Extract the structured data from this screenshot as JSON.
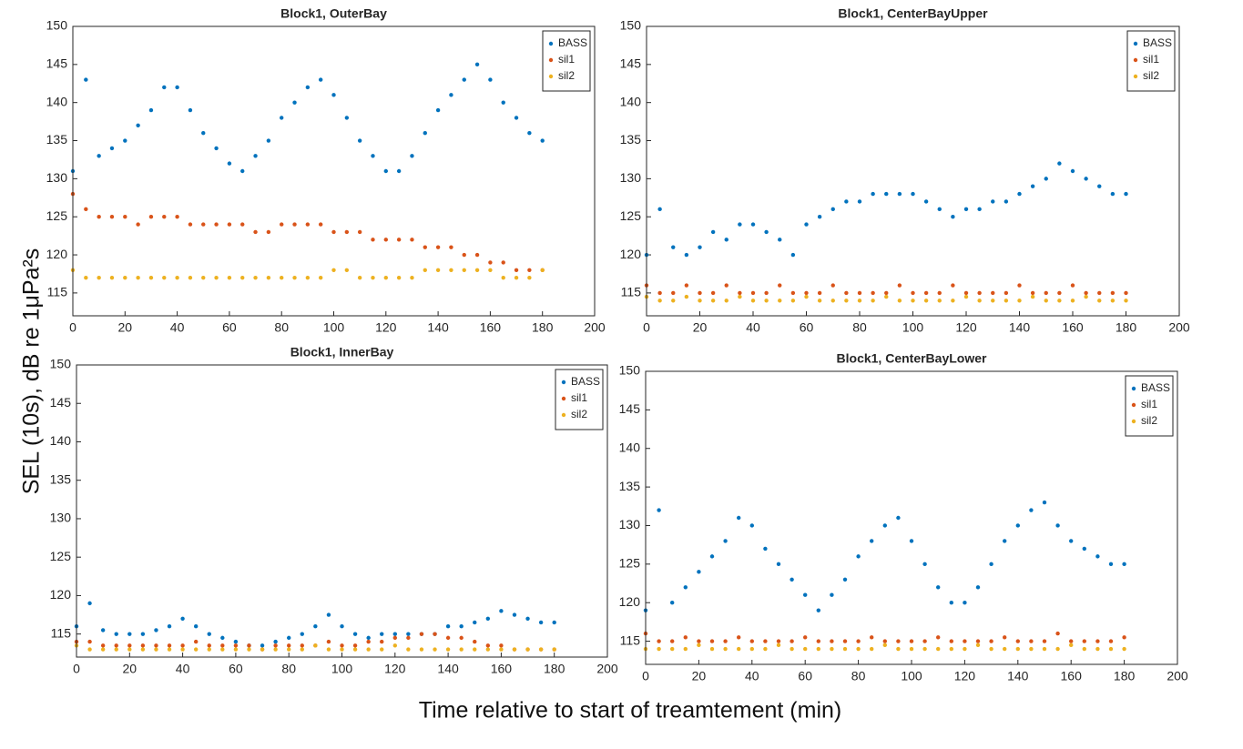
{
  "xlabel": "Time relative to start of treamtement (min)",
  "ylabel": "SEL (10s), dB re 1μPa²s",
  "chart_data": [
    {
      "type": "scatter",
      "title": "Block1, OuterBay",
      "legend": "northeast",
      "grid": false,
      "xlim": [
        0,
        200
      ],
      "xticks": [
        0,
        20,
        40,
        60,
        80,
        100,
        120,
        140,
        160,
        180,
        200
      ],
      "ylim": [
        112,
        150
      ],
      "yticks": [
        115,
        120,
        125,
        130,
        135,
        140,
        145,
        150
      ],
      "x": [
        0,
        5,
        10,
        15,
        20,
        25,
        30,
        35,
        40,
        45,
        50,
        55,
        60,
        65,
        70,
        75,
        80,
        85,
        90,
        95,
        100,
        105,
        110,
        115,
        120,
        125,
        130,
        135,
        140,
        145,
        150,
        155,
        160,
        165,
        170,
        175,
        180
      ],
      "series": [
        {
          "name": "BASS",
          "color": "#0072bd",
          "values": [
            131,
            143,
            133,
            134,
            135,
            137,
            139,
            142,
            142,
            139,
            136,
            134,
            132,
            131,
            133,
            135,
            138,
            140,
            142,
            143,
            141,
            138,
            135,
            133,
            131,
            131,
            133,
            136,
            139,
            141,
            143,
            145,
            143,
            140,
            138,
            136,
            135
          ]
        },
        {
          "name": "sil1",
          "color": "#d95319",
          "values": [
            128,
            126,
            125,
            125,
            125,
            124,
            125,
            125,
            125,
            124,
            124,
            124,
            124,
            124,
            123,
            123,
            124,
            124,
            124,
            124,
            123,
            123,
            123,
            122,
            122,
            122,
            122,
            121,
            121,
            121,
            120,
            120,
            119,
            119,
            118,
            118,
            118
          ]
        },
        {
          "name": "sil2",
          "color": "#edb120",
          "values": [
            118,
            117,
            117,
            117,
            117,
            117,
            117,
            117,
            117,
            117,
            117,
            117,
            117,
            117,
            117,
            117,
            117,
            117,
            117,
            117,
            118,
            118,
            117,
            117,
            117,
            117,
            117,
            118,
            118,
            118,
            118,
            118,
            118,
            117,
            117,
            117,
            118
          ]
        }
      ]
    },
    {
      "type": "scatter",
      "title": "Block1, CenterBayUpper",
      "legend": "northeast",
      "grid": false,
      "xlim": [
        0,
        200
      ],
      "xticks": [
        0,
        20,
        40,
        60,
        80,
        100,
        120,
        140,
        160,
        180,
        200
      ],
      "ylim": [
        112,
        150
      ],
      "yticks": [
        115,
        120,
        125,
        130,
        135,
        140,
        145,
        150
      ],
      "x": [
        0,
        5,
        10,
        15,
        20,
        25,
        30,
        35,
        40,
        45,
        50,
        55,
        60,
        65,
        70,
        75,
        80,
        85,
        90,
        95,
        100,
        105,
        110,
        115,
        120,
        125,
        130,
        135,
        140,
        145,
        150,
        155,
        160,
        165,
        170,
        175,
        180
      ],
      "series": [
        {
          "name": "BASS",
          "color": "#0072bd",
          "values": [
            120,
            126,
            121,
            120,
            121,
            123,
            122,
            124,
            124,
            123,
            122,
            120,
            124,
            125,
            126,
            127,
            127,
            128,
            128,
            128,
            128,
            127,
            126,
            125,
            126,
            126,
            127,
            127,
            128,
            129,
            130,
            132,
            131,
            130,
            129,
            128,
            128
          ]
        },
        {
          "name": "sil1",
          "color": "#d95319",
          "values": [
            116,
            115,
            115,
            116,
            115,
            115,
            116,
            115,
            115,
            115,
            116,
            115,
            115,
            115,
            116,
            115,
            115,
            115,
            115,
            116,
            115,
            115,
            115,
            116,
            115,
            115,
            115,
            115,
            116,
            115,
            115,
            115,
            116,
            115,
            115,
            115,
            115
          ]
        },
        {
          "name": "sil2",
          "color": "#edb120",
          "values": [
            114.5,
            114,
            114,
            114.5,
            114,
            114,
            114,
            114.5,
            114,
            114,
            114,
            114,
            114.5,
            114,
            114,
            114,
            114,
            114,
            114.5,
            114,
            114,
            114,
            114,
            114,
            114.5,
            114,
            114,
            114,
            114,
            114.5,
            114,
            114,
            114,
            114.5,
            114,
            114,
            114
          ]
        }
      ]
    },
    {
      "type": "scatter",
      "title": "Block1, InnerBay",
      "legend": "northeast",
      "grid": false,
      "xlim": [
        0,
        200
      ],
      "xticks": [
        0,
        20,
        40,
        60,
        80,
        100,
        120,
        140,
        160,
        180,
        200
      ],
      "ylim": [
        112,
        150
      ],
      "yticks": [
        115,
        120,
        125,
        130,
        135,
        140,
        145,
        150
      ],
      "x": [
        0,
        5,
        10,
        15,
        20,
        25,
        30,
        35,
        40,
        45,
        50,
        55,
        60,
        65,
        70,
        75,
        80,
        85,
        90,
        95,
        100,
        105,
        110,
        115,
        120,
        125,
        130,
        135,
        140,
        145,
        150,
        155,
        160,
        165,
        170,
        175,
        180
      ],
      "series": [
        {
          "name": "BASS",
          "color": "#0072bd",
          "values": [
            116,
            119,
            115.5,
            115,
            115,
            115,
            115.5,
            116,
            117,
            116,
            115,
            114.5,
            114,
            113.5,
            113.5,
            114,
            114.5,
            115,
            116,
            117.5,
            116,
            115,
            114.5,
            115,
            115,
            115,
            115,
            115,
            116,
            116,
            116.5,
            117,
            118,
            117.5,
            117,
            116.5,
            116.5
          ]
        },
        {
          "name": "sil1",
          "color": "#d95319",
          "values": [
            114,
            114,
            113.5,
            113.5,
            113.5,
            113.5,
            113.5,
            113.5,
            113.5,
            114,
            113.5,
            113.5,
            113.5,
            113.5,
            113,
            113.5,
            113.5,
            113.5,
            113.5,
            114,
            113.5,
            113.5,
            114,
            114,
            114.5,
            114.5,
            115,
            115,
            114.5,
            114.5,
            114,
            113.5,
            113.5,
            113,
            113,
            113,
            113
          ]
        },
        {
          "name": "sil2",
          "color": "#edb120",
          "values": [
            113.5,
            113,
            113,
            113,
            113,
            113,
            113,
            113,
            113,
            113,
            113,
            113,
            113,
            113,
            113,
            113,
            113,
            113,
            113.5,
            113,
            113,
            113,
            113,
            113,
            113.5,
            113,
            113,
            113,
            113,
            113,
            113,
            113,
            113,
            113,
            113,
            113,
            113
          ]
        }
      ]
    },
    {
      "type": "scatter",
      "title": "Block1, CenterBayLower",
      "legend": "northeast",
      "grid": false,
      "xlim": [
        0,
        200
      ],
      "xticks": [
        0,
        20,
        40,
        60,
        80,
        100,
        120,
        140,
        160,
        180,
        200
      ],
      "ylim": [
        112,
        150
      ],
      "yticks": [
        115,
        120,
        125,
        130,
        135,
        140,
        145,
        150
      ],
      "x": [
        0,
        5,
        10,
        15,
        20,
        25,
        30,
        35,
        40,
        45,
        50,
        55,
        60,
        65,
        70,
        75,
        80,
        85,
        90,
        95,
        100,
        105,
        110,
        115,
        120,
        125,
        130,
        135,
        140,
        145,
        150,
        155,
        160,
        165,
        170,
        175,
        180
      ],
      "series": [
        {
          "name": "BASS",
          "color": "#0072bd",
          "values": [
            119,
            132,
            120,
            122,
            124,
            126,
            128,
            131,
            130,
            127,
            125,
            123,
            121,
            119,
            121,
            123,
            126,
            128,
            130,
            131,
            128,
            125,
            122,
            120,
            120,
            122,
            125,
            128,
            130,
            132,
            133,
            130,
            128,
            127,
            126,
            125,
            125
          ]
        },
        {
          "name": "sil1",
          "color": "#d95319",
          "values": [
            116,
            115,
            115,
            115.5,
            115,
            115,
            115,
            115.5,
            115,
            115,
            115,
            115,
            115.5,
            115,
            115,
            115,
            115,
            115.5,
            115,
            115,
            115,
            115,
            115.5,
            115,
            115,
            115,
            115,
            115.5,
            115,
            115,
            115,
            116,
            115,
            115,
            115,
            115,
            115.5
          ]
        },
        {
          "name": "sil2",
          "color": "#edb120",
          "values": [
            114,
            114,
            114,
            114,
            114.5,
            114,
            114,
            114,
            114,
            114,
            114.5,
            114,
            114,
            114,
            114,
            114,
            114,
            114,
            114.5,
            114,
            114,
            114,
            114,
            114,
            114,
            114.5,
            114,
            114,
            114,
            114,
            114,
            114,
            114.5,
            114,
            114,
            114,
            114
          ]
        }
      ]
    }
  ]
}
